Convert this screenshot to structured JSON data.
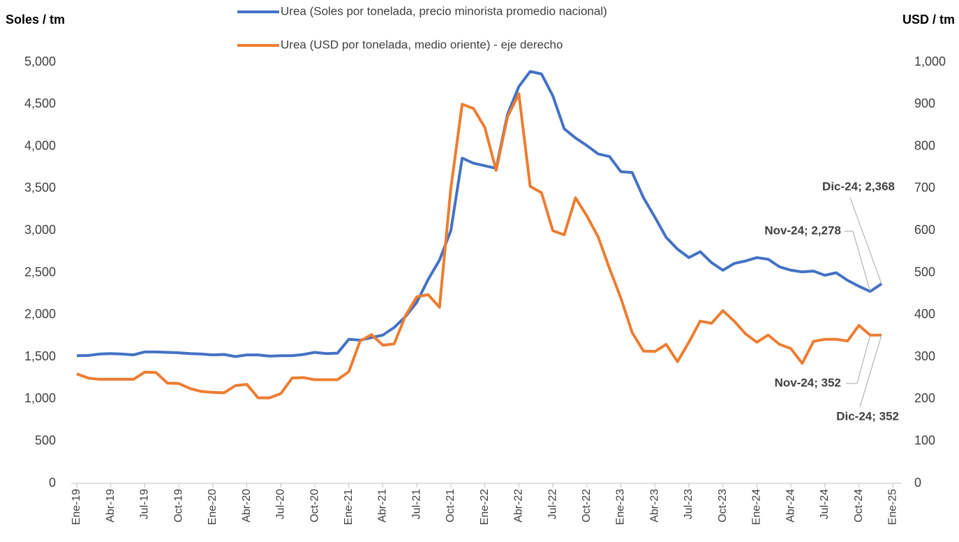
{
  "chart_data": {
    "type": "line",
    "y_label": "Soles / tm",
    "y2_label": "USD / tm",
    "legend": "top",
    "categories": [
      "Ene-19",
      null,
      null,
      "Abr-19",
      null,
      null,
      "Jul-19",
      null,
      null,
      "Oct-19",
      null,
      null,
      "Ene-20",
      null,
      null,
      "Abr-20",
      null,
      null,
      "Jul-20",
      null,
      null,
      "Oct-20",
      null,
      null,
      "Ene-21",
      null,
      null,
      "Abr-21",
      null,
      null,
      "Jul-21",
      null,
      null,
      "Oct-21",
      null,
      null,
      "Ene-22",
      null,
      null,
      "Abr-22",
      null,
      null,
      "Jul-22",
      null,
      null,
      "Oct-22",
      null,
      null,
      "Ene-23",
      null,
      null,
      "Abr-23",
      null,
      null,
      "Jul-23",
      null,
      null,
      "Oct-23",
      null,
      null,
      "Ene-24",
      null,
      null,
      "Abr-24",
      null,
      null,
      "Jul-24",
      null,
      null,
      "Oct-24",
      null,
      null,
      "Ene-25"
    ],
    "series": [
      {
        "name": "Urea (Soles por tonelada, precio minorista promedio nacional)",
        "color": "#4472c4",
        "axis": "y",
        "values": [
          1515,
          1518,
          1535,
          1540,
          1535,
          1525,
          1560,
          1560,
          1555,
          1550,
          1540,
          1535,
          1525,
          1530,
          1505,
          1525,
          1525,
          1510,
          1515,
          1515,
          1530,
          1555,
          1540,
          1545,
          1710,
          1700,
          1730,
          1760,
          1850,
          1980,
          2150,
          2420,
          2650,
          3000,
          3860,
          3800,
          3770,
          3740,
          4380,
          4710,
          4890,
          4860,
          4600,
          4210,
          4100,
          4010,
          3910,
          3880,
          3700,
          3690,
          3390,
          3160,
          2920,
          2780,
          2680,
          2750,
          2620,
          2530,
          2610,
          2640,
          2680,
          2660,
          2570,
          2530,
          2510,
          2520,
          2470,
          2500,
          2410,
          2340,
          2278,
          2368,
          null
        ],
        "value_labels": [
          null,
          null,
          null,
          null,
          null,
          null,
          null,
          null,
          null,
          null,
          null,
          null,
          null,
          null,
          null,
          null,
          null,
          null,
          null,
          null,
          null,
          null,
          null,
          null,
          null,
          null,
          null,
          null,
          null,
          null,
          null,
          null,
          null,
          null,
          null,
          null,
          null,
          null,
          null,
          null,
          null,
          null,
          null,
          null,
          null,
          null,
          null,
          null,
          null,
          null,
          null,
          null,
          null,
          null,
          null,
          null,
          null,
          null,
          null,
          null,
          null,
          null,
          null,
          null,
          null,
          null,
          null,
          null,
          null,
          null,
          "Nov-24; 2,278",
          "Dic-24; 2,368",
          null
        ]
      },
      {
        "name": "Urea (USD por tonelada, medio oriente) - eje derecho",
        "color": "#ed7d31",
        "axis": "y2",
        "values": [
          260,
          250,
          247,
          247,
          247,
          247,
          264,
          263,
          238,
          237,
          225,
          218,
          216,
          215,
          232,
          235,
          203,
          203,
          213,
          250,
          251,
          246,
          246,
          246,
          265,
          338,
          353,
          328,
          331,
          398,
          443,
          448,
          418,
          700,
          900,
          890,
          845,
          743,
          870,
          925,
          705,
          690,
          600,
          590,
          678,
          635,
          585,
          510,
          440,
          358,
          314,
          313,
          330,
          289,
          335,
          385,
          380,
          410,
          385,
          355,
          335,
          352,
          330,
          320,
          285,
          337,
          342,
          342,
          338,
          375,
          352,
          352,
          null
        ],
        "value_labels": [
          null,
          null,
          null,
          null,
          null,
          null,
          null,
          null,
          null,
          null,
          null,
          null,
          null,
          null,
          null,
          null,
          null,
          null,
          null,
          null,
          null,
          null,
          null,
          null,
          null,
          null,
          null,
          null,
          null,
          null,
          null,
          null,
          null,
          null,
          null,
          null,
          null,
          null,
          null,
          null,
          null,
          null,
          null,
          null,
          null,
          null,
          null,
          null,
          null,
          null,
          null,
          null,
          null,
          null,
          null,
          null,
          null,
          null,
          null,
          null,
          null,
          null,
          null,
          null,
          null,
          null,
          null,
          null,
          null,
          null,
          "Nov-24; 352",
          "Dic-24; 352",
          null
        ]
      }
    ],
    "ylim": [
      0,
      5000
    ],
    "yticks": [
      0,
      500,
      {
        "value": 1000,
        "label": "1,000"
      },
      {
        "value": 1500,
        "label": "1,500"
      },
      {
        "value": 2000,
        "label": "2,000"
      },
      {
        "value": 2500,
        "label": "2,500"
      },
      {
        "value": 3000,
        "label": "3,000"
      },
      {
        "value": 3500,
        "label": "3,500"
      },
      {
        "value": 4000,
        "label": "4,000"
      },
      {
        "value": 4500,
        "label": "4,500"
      },
      {
        "value": 5000,
        "label": "5,000"
      }
    ],
    "y2lim": [
      0,
      1000
    ],
    "y2ticks": [
      0,
      100,
      200,
      300,
      400,
      500,
      600,
      700,
      800,
      900,
      {
        "value": 1000,
        "label": "1,000"
      }
    ],
    "grid": false
  }
}
